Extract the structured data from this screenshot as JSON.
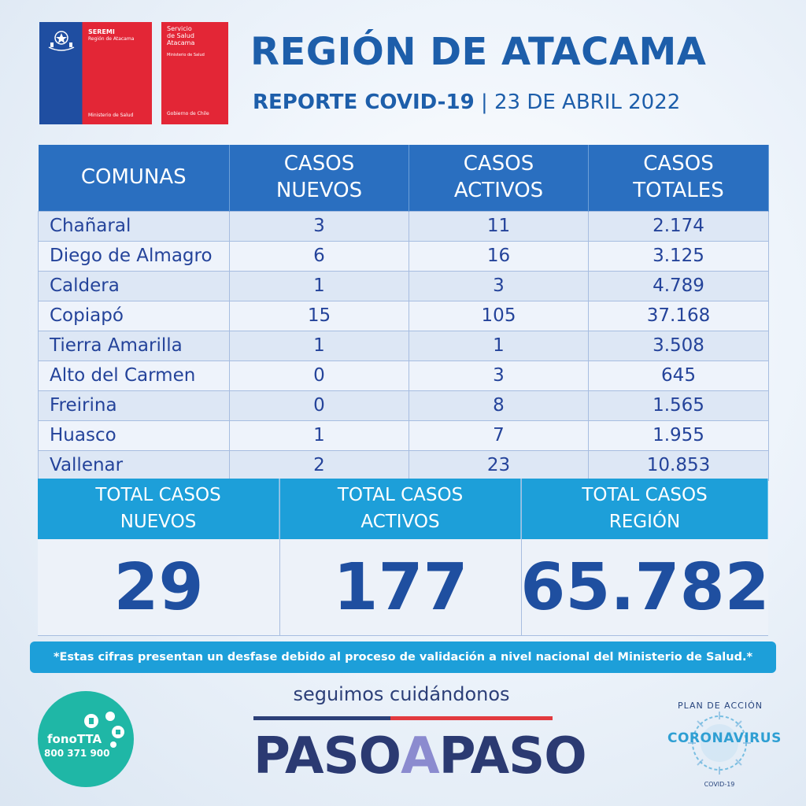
{
  "logos": {
    "seremi": {
      "title": "SEREMI",
      "subtitle": "Región de Atacama",
      "footer": "Ministerio de Salud"
    },
    "servicio": {
      "title_line1": "Servicio",
      "title_line2": "de Salud",
      "title_line3": "Atacama",
      "subtitle": "Ministerio de Salud",
      "footer": "Gobierno de Chile"
    }
  },
  "header": {
    "title": "REGIÓN DE ATACAMA",
    "report": "REPORTE COVID-19",
    "separator": "|",
    "date": "23 DE ABRIL 2022"
  },
  "table": {
    "headers": {
      "comunas": "COMUNAS",
      "nuevos": "CASOS\nNUEVOS",
      "activos": "CASOS\nACTIVOS",
      "totales": "CASOS\nTOTALES"
    },
    "rows": [
      {
        "comuna": "Chañaral",
        "nuevos": "3",
        "activos": "11",
        "totales": "2.174"
      },
      {
        "comuna": "Diego de Almagro",
        "nuevos": "6",
        "activos": "16",
        "totales": "3.125"
      },
      {
        "comuna": "Caldera",
        "nuevos": "1",
        "activos": "3",
        "totales": "4.789"
      },
      {
        "comuna": "Copiapó",
        "nuevos": "15",
        "activos": "105",
        "totales": "37.168"
      },
      {
        "comuna": "Tierra Amarilla",
        "nuevos": "1",
        "activos": "1",
        "totales": "3.508"
      },
      {
        "comuna": "Alto del Carmen",
        "nuevos": "0",
        "activos": "3",
        "totales": "645"
      },
      {
        "comuna": "Freirina",
        "nuevos": "0",
        "activos": "8",
        "totales": "1.565"
      },
      {
        "comuna": "Huasco",
        "nuevos": "1",
        "activos": "7",
        "totales": "1.955"
      },
      {
        "comuna": "Vallenar",
        "nuevos": "2",
        "activos": "23",
        "totales": "10.853"
      }
    ]
  },
  "totals": [
    {
      "label_line1": "TOTAL CASOS",
      "label_line2": "NUEVOS",
      "value": "29"
    },
    {
      "label_line1": "TOTAL CASOS",
      "label_line2": "ACTIVOS",
      "value": "177"
    },
    {
      "label_line1": "TOTAL CASOS",
      "label_line2": "REGIÓN",
      "value": "65.782"
    }
  ],
  "note": "*Estas cifras presentan un desfase debido al proceso de validación a nivel nacional del Ministerio de Salud.*",
  "footer": {
    "fono_name": "fonoTTA",
    "fono_number": "800 371 900",
    "seguimos": "seguimos cuidándonos",
    "paso_1": "PASO",
    "paso_a": "A",
    "paso_2": "PASO",
    "plan_top": "PLAN DE ACCIÓN",
    "plan_corona": "CORONAVIRUS",
    "plan_covid": "COVID-19"
  },
  "colors": {
    "primary_blue": "#1d5eaa",
    "header_blue": "#2a6fc0",
    "cyan": "#1d9fd9",
    "chile_red": "#e32636",
    "teal": "#1fb7a6"
  }
}
